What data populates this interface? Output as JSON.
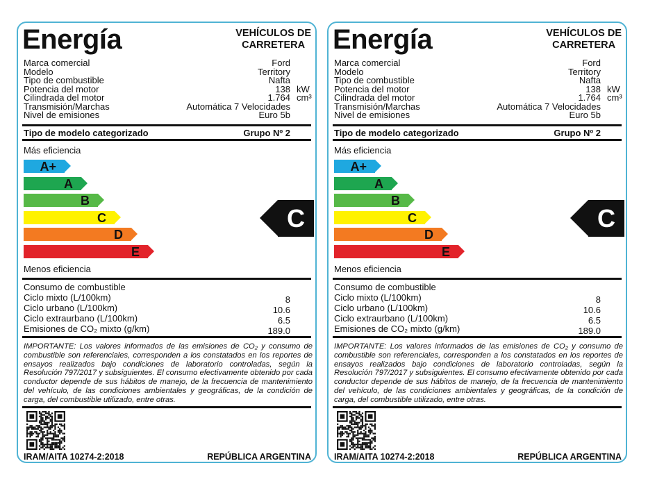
{
  "label": {
    "title": "Energía",
    "category_line1": "VEHÍCULOS DE",
    "category_line2": "CARRETERA",
    "specs": [
      {
        "label": "Marca comercial",
        "value": "Ford",
        "unit": ""
      },
      {
        "label": "Modelo",
        "value": "Territory",
        "unit": ""
      },
      {
        "label": "Tipo de combustible",
        "value": "Nafta",
        "unit": ""
      },
      {
        "label": "Potencia del motor",
        "value": "138",
        "unit": "kW"
      },
      {
        "label": "Cilindrada del motor",
        "value": "1.764",
        "unit": "cm³"
      },
      {
        "label": "Transmisión/Marchas",
        "value": "Automática 7 Velocidades",
        "unit": ""
      },
      {
        "label": "Nivel de emisiones",
        "value": "Euro 5b",
        "unit": ""
      }
    ],
    "model_type_label": "Tipo de modelo categorizado",
    "model_type_value": "Grupo Nº 2",
    "more_efficiency": "Más eficiencia",
    "less_efficiency": "Menos eficiencia",
    "classes": [
      {
        "name": "A+",
        "color": "#1fa8e0"
      },
      {
        "name": "A",
        "color": "#1ea650"
      },
      {
        "name": "B",
        "color": "#56b947"
      },
      {
        "name": "C",
        "color": "#fff200"
      },
      {
        "name": "D",
        "color": "#f37a21"
      },
      {
        "name": "E",
        "color": "#e2232a"
      }
    ],
    "rating": "C",
    "consumption_title": "Consumo de combustible",
    "consumption": [
      {
        "label": "Ciclo mixto (L/100km)",
        "value": "8"
      },
      {
        "label": "Ciclo urbano (L/100km)",
        "value": "10.6"
      },
      {
        "label": "Ciclo extraurbano (L/100km)",
        "value": "6.5"
      },
      {
        "label": "Emisiones de CO₂ mixto (g/km)",
        "value": "189.0"
      }
    ],
    "note": "IMPORTANTE: Los valores informados de las emisiones de CO₂ y consumo de combustible son referenciales, corresponden a los constatados en los reportes de ensayos realizados bajo condiciones de laboratorio controladas, según la Resolución 797/2017 y subsiguientes. El consumo efectivamente obtenido por cada conductor depende de sus hábitos de manejo, de la frecuencia de mantenimiento del vehículo, de las condiciones ambientales y geográficas, de la condición de carga, del combustible utilizado, entre otras.",
    "standard": "IRAM/AITA 10274-2:2018",
    "country": "REPÚBLICA ARGENTINA"
  },
  "border_color": "#4fb3d4"
}
